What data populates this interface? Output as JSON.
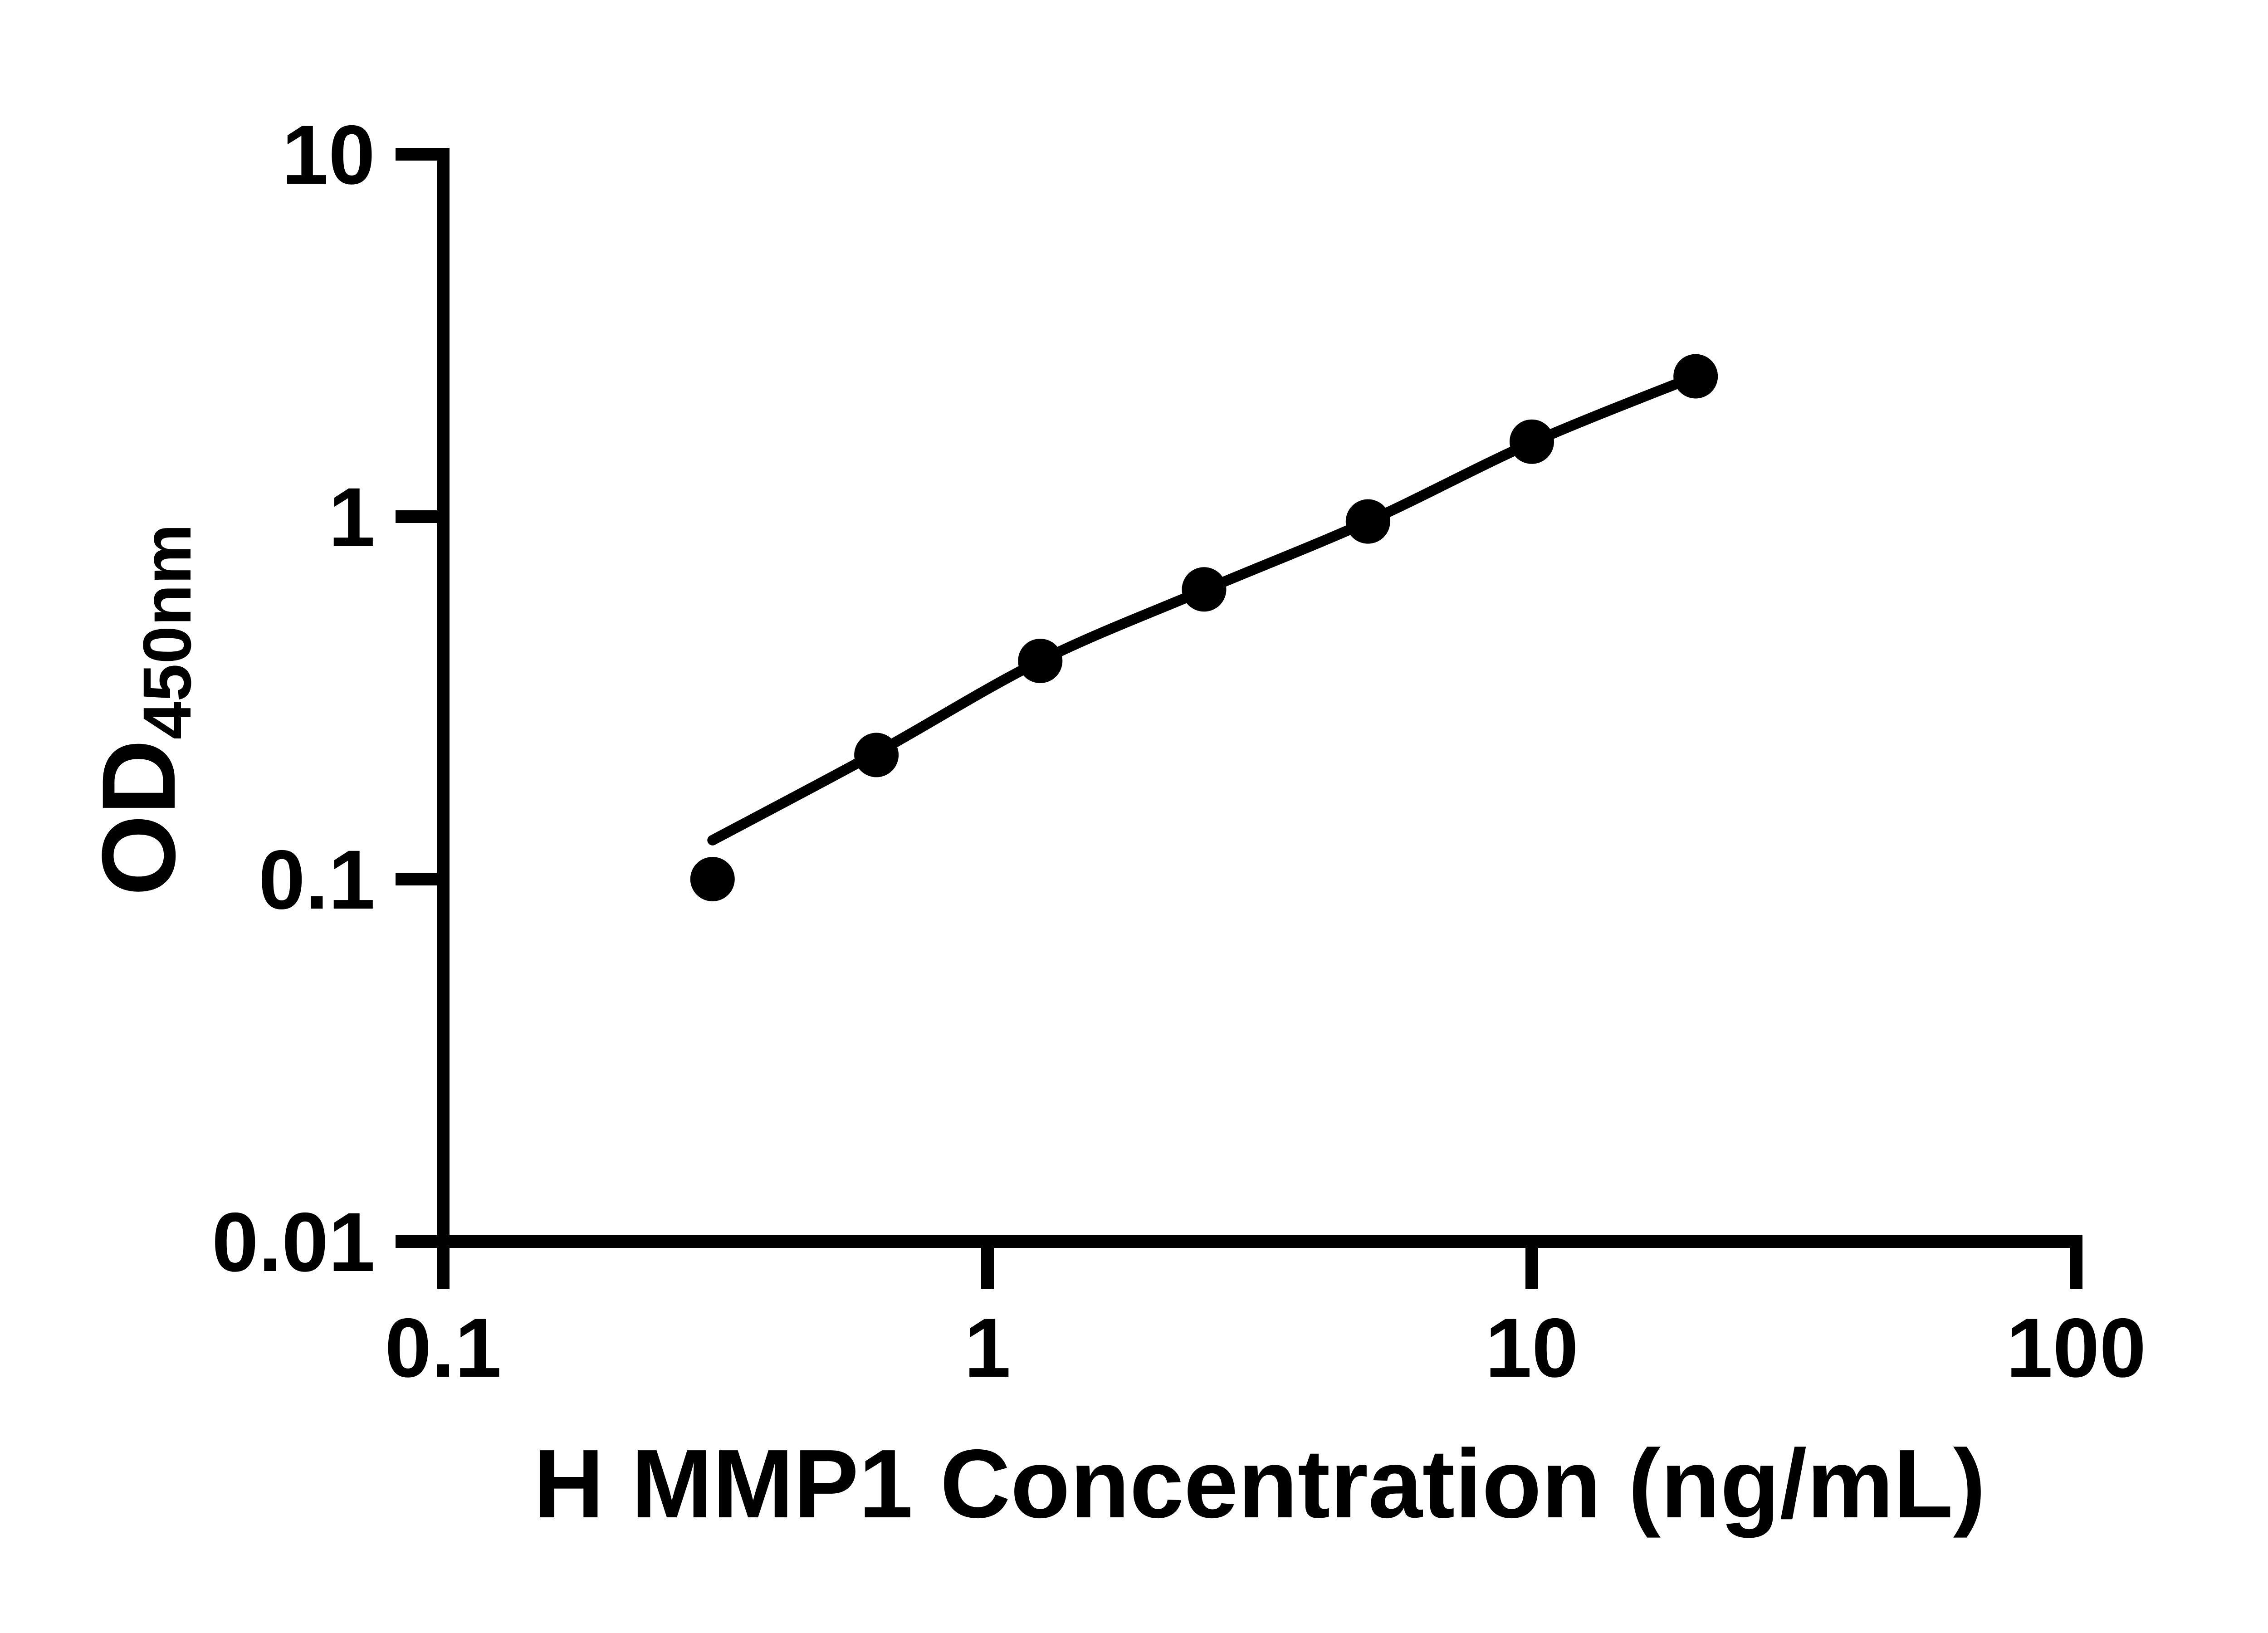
{
  "colors": {
    "foreground": "#000000",
    "background": "#ffffff"
  },
  "chart_data": {
    "type": "scatter",
    "title": "",
    "xlabel": "H MMP1 Concentration (ng/mL)",
    "ylabel": "OD450nm",
    "ylabel_main": "OD",
    "ylabel_subscript": "450nm",
    "x_scale": "log",
    "y_scale": "log",
    "xlim": [
      0.1,
      100
    ],
    "ylim": [
      0.01,
      10
    ],
    "x_ticks": [
      0.1,
      1,
      10,
      100
    ],
    "x_tick_labels": [
      "0.1",
      "1",
      "10",
      "100"
    ],
    "y_ticks": [
      10,
      1,
      0.1,
      0.01
    ],
    "y_tick_labels": [
      "10",
      "1",
      "0.1",
      "0.01"
    ],
    "grid": false,
    "legend": false,
    "series": [
      {
        "marker": "circle",
        "color": "#000000",
        "points": [
          {
            "x": 0.3125,
            "y": 0.1
          },
          {
            "x": 0.625,
            "y": 0.22
          },
          {
            "x": 1.25,
            "y": 0.4
          },
          {
            "x": 2.5,
            "y": 0.63
          },
          {
            "x": 5,
            "y": 0.97
          },
          {
            "x": 10,
            "y": 1.61
          },
          {
            "x": 20,
            "y": 2.44
          }
        ]
      }
    ],
    "fit_curve": {
      "color": "#000000",
      "points": [
        {
          "x": 0.3125,
          "y": 0.128
        },
        {
          "x": 0.625,
          "y": 0.223
        },
        {
          "x": 1.25,
          "y": 0.4
        },
        {
          "x": 2.5,
          "y": 0.627
        },
        {
          "x": 5,
          "y": 0.97
        },
        {
          "x": 10,
          "y": 1.6
        },
        {
          "x": 20,
          "y": 2.44
        }
      ]
    }
  }
}
